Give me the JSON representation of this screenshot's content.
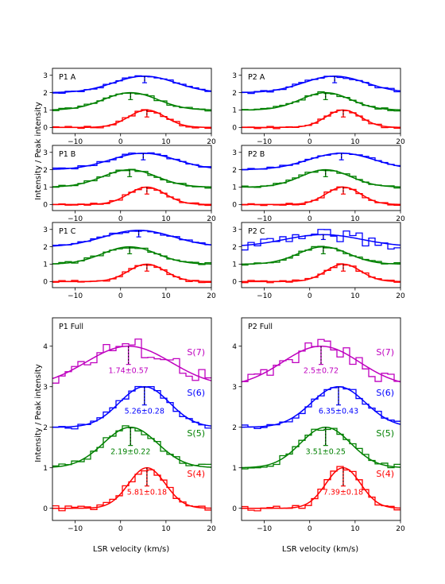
{
  "figure": {
    "ylabel": "Intensity / Peak intensity",
    "xlabel": "LSR velocity (km/s)"
  },
  "colors": {
    "S(4)": "#ff0000",
    "S(5)": "#008000",
    "S(6)": "#0000ff",
    "S(7)": "#bf00bf"
  },
  "chart_data": [
    {
      "type": "line",
      "title": "P1 A",
      "xlim": [
        -15,
        20
      ],
      "ylim": [
        -0.35,
        3.4
      ],
      "xticks": [
        -10,
        0,
        10,
        20
      ],
      "yticks": [
        0,
        1,
        2,
        3
      ],
      "series": [
        {
          "name": "S(4)",
          "offset": 0,
          "center": 5.8,
          "fwhm": 9.5,
          "amp": 1.0
        },
        {
          "name": "S(5)",
          "offset": 1,
          "center": 2.2,
          "fwhm": 14,
          "amp": 1.0
        },
        {
          "name": "S(6)",
          "offset": 2,
          "center": 5.3,
          "fwhm": 16,
          "amp": 0.95
        }
      ]
    },
    {
      "type": "line",
      "title": "P2 A",
      "xlim": [
        -15,
        20
      ],
      "ylim": [
        -0.35,
        3.4
      ],
      "xticks": [
        -10,
        0,
        10,
        20
      ],
      "yticks": [
        0,
        1,
        2,
        3
      ],
      "series": [
        {
          "name": "S(4)",
          "offset": 0,
          "center": 7.4,
          "fwhm": 9,
          "amp": 1.0
        },
        {
          "name": "S(5)",
          "offset": 1,
          "center": 3.5,
          "fwhm": 13,
          "amp": 1.0
        },
        {
          "name": "S(6)",
          "offset": 2,
          "center": 5.5,
          "fwhm": 16,
          "amp": 0.95
        }
      ]
    },
    {
      "type": "line",
      "title": "P1 B",
      "xlim": [
        -15,
        20
      ],
      "ylim": [
        -0.35,
        3.4
      ],
      "xticks": [
        -10,
        0,
        10,
        20
      ],
      "yticks": [
        0,
        1,
        2,
        3
      ],
      "series": [
        {
          "name": "S(4)",
          "offset": 0,
          "center": 5.8,
          "fwhm": 9.5,
          "amp": 1.0
        },
        {
          "name": "S(5)",
          "offset": 1,
          "center": 2.0,
          "fwhm": 14,
          "amp": 1.0
        },
        {
          "name": "S(6)",
          "offset": 2,
          "center": 5.0,
          "fwhm": 17,
          "amp": 0.95
        }
      ]
    },
    {
      "type": "line",
      "title": "P2 B",
      "xlim": [
        -15,
        20
      ],
      "ylim": [
        -0.35,
        3.4
      ],
      "xticks": [
        -10,
        0,
        10,
        20
      ],
      "yticks": [
        0,
        1,
        2,
        3
      ],
      "series": [
        {
          "name": "S(4)",
          "offset": 0,
          "center": 7.4,
          "fwhm": 9,
          "amp": 1.0
        },
        {
          "name": "S(5)",
          "offset": 1,
          "center": 3.5,
          "fwhm": 13,
          "amp": 1.0
        },
        {
          "name": "S(6)",
          "offset": 2,
          "center": 7.0,
          "fwhm": 17,
          "amp": 0.95
        }
      ]
    },
    {
      "type": "line",
      "title": "P1 C",
      "xlim": [
        -15,
        20
      ],
      "ylim": [
        -0.35,
        3.4
      ],
      "xticks": [
        -10,
        0,
        10,
        20
      ],
      "yticks": [
        0,
        1,
        2,
        3
      ],
      "series": [
        {
          "name": "S(4)",
          "offset": 0,
          "center": 5.8,
          "fwhm": 9.5,
          "amp": 1.0
        },
        {
          "name": "S(5)",
          "offset": 1,
          "center": 2.0,
          "fwhm": 14,
          "amp": 1.0
        },
        {
          "name": "S(6)",
          "offset": 2,
          "center": 4.0,
          "fwhm": 18,
          "amp": 0.95
        }
      ]
    },
    {
      "type": "line",
      "title": "P2 C",
      "xlim": [
        -15,
        20
      ],
      "ylim": [
        -0.35,
        3.4
      ],
      "xticks": [
        -10,
        0,
        10,
        20
      ],
      "yticks": [
        0,
        1,
        2,
        3
      ],
      "series": [
        {
          "name": "S(4)",
          "offset": 0,
          "center": 7.4,
          "fwhm": 9,
          "amp": 1.0
        },
        {
          "name": "S(5)",
          "offset": 1,
          "center": 3.0,
          "fwhm": 13,
          "amp": 1.0
        },
        {
          "name": "S(6)",
          "offset": 2,
          "center": 3.0,
          "fwhm": 20,
          "amp": 0.7
        }
      ]
    },
    {
      "type": "line",
      "title": "P1 Full",
      "xlim": [
        -15,
        20
      ],
      "ylim": [
        -0.3,
        4.7
      ],
      "xticks": [
        -10,
        0,
        10,
        20
      ],
      "yticks": [
        0,
        1,
        2,
        3,
        4
      ],
      "series": [
        {
          "name": "S(4)",
          "label": "S(4)",
          "offset": 0,
          "center": 5.81,
          "fwhm": 9.5,
          "amp": 1.0,
          "annotation": "5.81±0.18",
          "err": 0.18
        },
        {
          "name": "S(5)",
          "label": "S(5)",
          "offset": 1,
          "center": 2.19,
          "fwhm": 14,
          "amp": 1.0,
          "annotation": "2.19±0.22",
          "err": 0.22
        },
        {
          "name": "S(6)",
          "label": "S(6)",
          "offset": 2,
          "center": 5.26,
          "fwhm": 13,
          "amp": 1.0,
          "annotation": "5.26±0.28",
          "err": 0.28
        },
        {
          "name": "S(7)",
          "label": "S(7)",
          "offset": 3,
          "center": 1.74,
          "fwhm": 22,
          "amp": 1.0,
          "annotation": "1.74±0.57",
          "err": 0.57
        }
      ]
    },
    {
      "type": "line",
      "title": "P2 Full",
      "xlim": [
        -15,
        20
      ],
      "ylim": [
        -0.3,
        4.7
      ],
      "xticks": [
        -10,
        0,
        10,
        20
      ],
      "yticks": [
        0,
        1,
        2,
        3,
        4
      ],
      "series": [
        {
          "name": "S(4)",
          "label": "S(4)",
          "offset": 0,
          "center": 7.39,
          "fwhm": 9,
          "amp": 1.0,
          "annotation": "7.39±0.18",
          "err": 0.18
        },
        {
          "name": "S(5)",
          "label": "S(5)",
          "offset": 1,
          "center": 3.51,
          "fwhm": 13,
          "amp": 1.0,
          "annotation": "3.51±0.25",
          "err": 0.25
        },
        {
          "name": "S(6)",
          "label": "S(6)",
          "offset": 2,
          "center": 6.35,
          "fwhm": 14,
          "amp": 1.0,
          "annotation": "6.35±0.43",
          "err": 0.43
        },
        {
          "name": "S(7)",
          "label": "S(7)",
          "offset": 3,
          "center": 2.5,
          "fwhm": 20,
          "amp": 1.0,
          "annotation": "2.5±0.72",
          "err": 0.72
        }
      ]
    }
  ]
}
